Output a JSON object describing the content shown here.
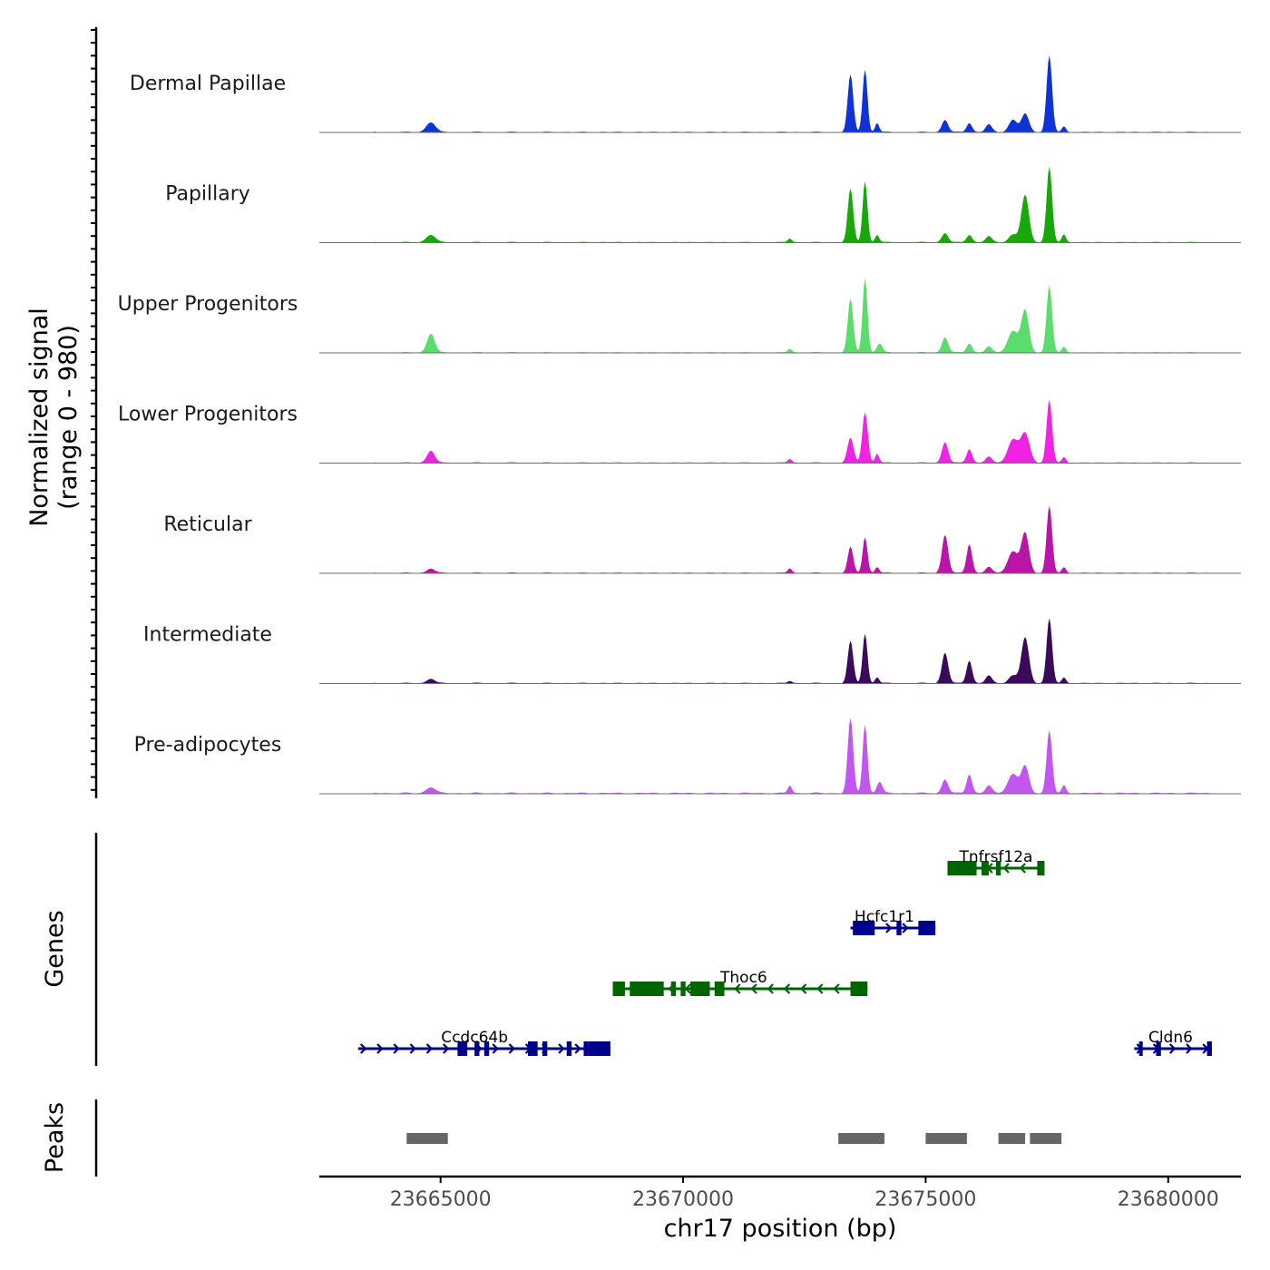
{
  "chart_data": {
    "type": "area",
    "chromosome": "chr17",
    "xlabel": "chr17 position (bp)",
    "xlim": [
      23662500,
      23681500
    ],
    "x_ticks": [
      23665000,
      23670000,
      23675000,
      23680000
    ],
    "x_tick_labels": [
      "23665000",
      "23670000",
      "23675000",
      "23680000"
    ],
    "coverage": {
      "ylabel_line1": "Normalized signal",
      "ylabel_line2": "(range 0 - 980)",
      "y_range": [
        0,
        980
      ],
      "tracks": [
        {
          "name": "Dermal Papillae",
          "color": "#1033D6",
          "bg": 0.02,
          "peaks": [
            [
              23664800,
              0.13,
              130
            ],
            [
              23673450,
              0.75,
              80
            ],
            [
              23673750,
              0.82,
              70
            ],
            [
              23674000,
              0.12,
              60
            ],
            [
              23675400,
              0.16,
              90
            ],
            [
              23675900,
              0.12,
              80
            ],
            [
              23676300,
              0.1,
              90
            ],
            [
              23676800,
              0.16,
              120
            ],
            [
              23677050,
              0.24,
              110
            ],
            [
              23677550,
              1.0,
              80
            ],
            [
              23677850,
              0.07,
              60
            ]
          ]
        },
        {
          "name": "Papillary",
          "color": "#18A809",
          "bg": 0.02,
          "peaks": [
            [
              23664800,
              0.1,
              130
            ],
            [
              23672200,
              0.05,
              60
            ],
            [
              23673450,
              0.7,
              80
            ],
            [
              23673750,
              0.8,
              70
            ],
            [
              23674000,
              0.1,
              60
            ],
            [
              23675400,
              0.12,
              90
            ],
            [
              23675900,
              0.1,
              80
            ],
            [
              23676300,
              0.08,
              90
            ],
            [
              23676800,
              0.1,
              120
            ],
            [
              23677050,
              0.62,
              110
            ],
            [
              23677550,
              0.99,
              80
            ],
            [
              23677850,
              0.1,
              60
            ]
          ]
        },
        {
          "name": "Upper Progenitors",
          "color": "#5BDD6B",
          "bg": 0.02,
          "peaks": [
            [
              23664800,
              0.25,
              110
            ],
            [
              23672200,
              0.05,
              60
            ],
            [
              23673450,
              0.7,
              80
            ],
            [
              23673750,
              0.98,
              70
            ],
            [
              23674050,
              0.12,
              80
            ],
            [
              23675400,
              0.2,
              90
            ],
            [
              23675900,
              0.12,
              80
            ],
            [
              23676300,
              0.08,
              90
            ],
            [
              23676800,
              0.28,
              150
            ],
            [
              23677050,
              0.55,
              110
            ],
            [
              23677550,
              0.88,
              80
            ],
            [
              23677850,
              0.07,
              60
            ]
          ]
        },
        {
          "name": "Lower Progenitors",
          "color": "#F222E5",
          "bg": 0.02,
          "peaks": [
            [
              23664800,
              0.16,
              110
            ],
            [
              23672200,
              0.05,
              60
            ],
            [
              23673450,
              0.32,
              90
            ],
            [
              23673750,
              0.66,
              80
            ],
            [
              23674000,
              0.12,
              60
            ],
            [
              23675400,
              0.27,
              90
            ],
            [
              23675900,
              0.18,
              80
            ],
            [
              23676300,
              0.08,
              90
            ],
            [
              23676800,
              0.3,
              150
            ],
            [
              23677050,
              0.38,
              130
            ],
            [
              23677550,
              0.82,
              80
            ],
            [
              23677850,
              0.07,
              60
            ]
          ]
        },
        {
          "name": "Reticular",
          "color": "#BA14A8",
          "bg": 0.02,
          "peaks": [
            [
              23664800,
              0.06,
              110
            ],
            [
              23672200,
              0.06,
              60
            ],
            [
              23673450,
              0.34,
              80
            ],
            [
              23673750,
              0.47,
              70
            ],
            [
              23674000,
              0.08,
              60
            ],
            [
              23675400,
              0.5,
              90
            ],
            [
              23675900,
              0.38,
              80
            ],
            [
              23676300,
              0.08,
              90
            ],
            [
              23676800,
              0.28,
              150
            ],
            [
              23677050,
              0.52,
              110
            ],
            [
              23677550,
              0.88,
              80
            ],
            [
              23677850,
              0.07,
              60
            ]
          ]
        },
        {
          "name": "Intermediate",
          "color": "#3C0A5A",
          "bg": 0.02,
          "peaks": [
            [
              23664800,
              0.06,
              110
            ],
            [
              23672200,
              0.03,
              60
            ],
            [
              23673450,
              0.55,
              80
            ],
            [
              23673750,
              0.65,
              70
            ],
            [
              23674000,
              0.08,
              60
            ],
            [
              23675400,
              0.4,
              90
            ],
            [
              23675900,
              0.3,
              80
            ],
            [
              23676300,
              0.1,
              90
            ],
            [
              23676800,
              0.1,
              120
            ],
            [
              23677050,
              0.6,
              110
            ],
            [
              23677550,
              0.85,
              80
            ],
            [
              23677850,
              0.07,
              60
            ]
          ]
        },
        {
          "name": "Pre-adipocytes",
          "color": "#C257F0",
          "bg": 0.03,
          "peaks": [
            [
              23664800,
              0.08,
              130
            ],
            [
              23672200,
              0.1,
              60
            ],
            [
              23673450,
              0.98,
              80
            ],
            [
              23673750,
              0.9,
              70
            ],
            [
              23674050,
              0.15,
              80
            ],
            [
              23675400,
              0.18,
              90
            ],
            [
              23675900,
              0.25,
              80
            ],
            [
              23676300,
              0.1,
              90
            ],
            [
              23676800,
              0.25,
              150
            ],
            [
              23677050,
              0.35,
              110
            ],
            [
              23677550,
              0.82,
              80
            ],
            [
              23677850,
              0.1,
              60
            ]
          ]
        }
      ]
    },
    "genes": {
      "ylabel": "Genes",
      "items": [
        {
          "name": "Tnfrsf12a",
          "strand": "-",
          "color": "#006400",
          "start": 23675450,
          "end": 23677450,
          "row": 0,
          "exons": [
            [
              23675450,
              23676050
            ],
            [
              23676150,
              23676300
            ],
            [
              23676450,
              23676550
            ],
            [
              23677300,
              23677450
            ]
          ]
        },
        {
          "name": "Hcfc1r1",
          "strand": "+",
          "color": "#00008B",
          "start": 23673450,
          "end": 23675200,
          "row": 1,
          "exons": [
            [
              23673500,
              23673950
            ],
            [
              23674400,
              23674500
            ],
            [
              23674850,
              23675200
            ]
          ]
        },
        {
          "name": "Thoc6",
          "strand": "-",
          "color": "#006400",
          "start": 23668550,
          "end": 23673800,
          "row": 2,
          "exons": [
            [
              23668550,
              23668800
            ],
            [
              23668900,
              23669600
            ],
            [
              23669750,
              23669850
            ],
            [
              23669950,
              23670050
            ],
            [
              23670150,
              23670550
            ],
            [
              23670650,
              23670850
            ],
            [
              23673450,
              23673800
            ]
          ]
        },
        {
          "name": "Ccdc64b",
          "strand": "+",
          "color": "#00008B",
          "start": 23663300,
          "end": 23668500,
          "row": 3,
          "exons": [
            [
              23665350,
              23665550
            ],
            [
              23665700,
              23665800
            ],
            [
              23665900,
              23666000
            ],
            [
              23666800,
              23667000
            ],
            [
              23667100,
              23667200
            ],
            [
              23667600,
              23667700
            ],
            [
              23667950,
              23668050
            ],
            [
              23668050,
              23668500
            ]
          ]
        },
        {
          "name": "Cldn6",
          "strand": "+",
          "color": "#00008B",
          "start": 23679300,
          "end": 23680900,
          "row": 3,
          "exons": [
            [
              23679400,
              23679450
            ],
            [
              23679750,
              23679850
            ],
            [
              23680800,
              23680900
            ]
          ]
        }
      ]
    },
    "peaks": {
      "ylabel": "Peaks",
      "color": "#666666",
      "regions": [
        [
          23664300,
          23665150
        ],
        [
          23673200,
          23674150
        ],
        [
          23675000,
          23675850
        ],
        [
          23676500,
          23677050
        ],
        [
          23677150,
          23677800
        ]
      ]
    }
  }
}
